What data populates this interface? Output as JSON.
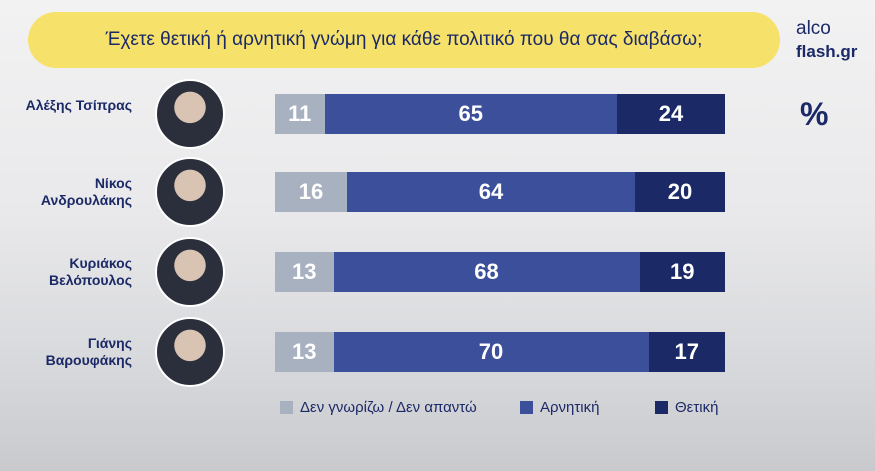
{
  "chart_data": {
    "type": "stacked-bar-horizontal",
    "title": "Έχετε θετική ή αρνητική γνώμη για κάθε πολιτικό που θα σας διαβάσω;",
    "source": [
      "alco",
      "flash.gr"
    ],
    "unit": "%",
    "categories": [
      "Αλέξης Τσίπρας",
      "Νίκος Ανδρουλάκης",
      "Κυριάκος Βελόπουλος",
      "Γιάνης Βαρουφάκης"
    ],
    "xlim": [
      0,
      100
    ],
    "series": [
      {
        "name": "Δεν γνωρίζω / Δεν απαντώ",
        "color": "#a7b1c0",
        "values": [
          11,
          16,
          13,
          13
        ]
      },
      {
        "name": "Αρνητική",
        "color": "#3b4f9b",
        "values": [
          65,
          64,
          68,
          70
        ]
      },
      {
        "name": "Θετική",
        "color": "#1b2966",
        "values": [
          24,
          20,
          19,
          17
        ]
      }
    ]
  }
}
